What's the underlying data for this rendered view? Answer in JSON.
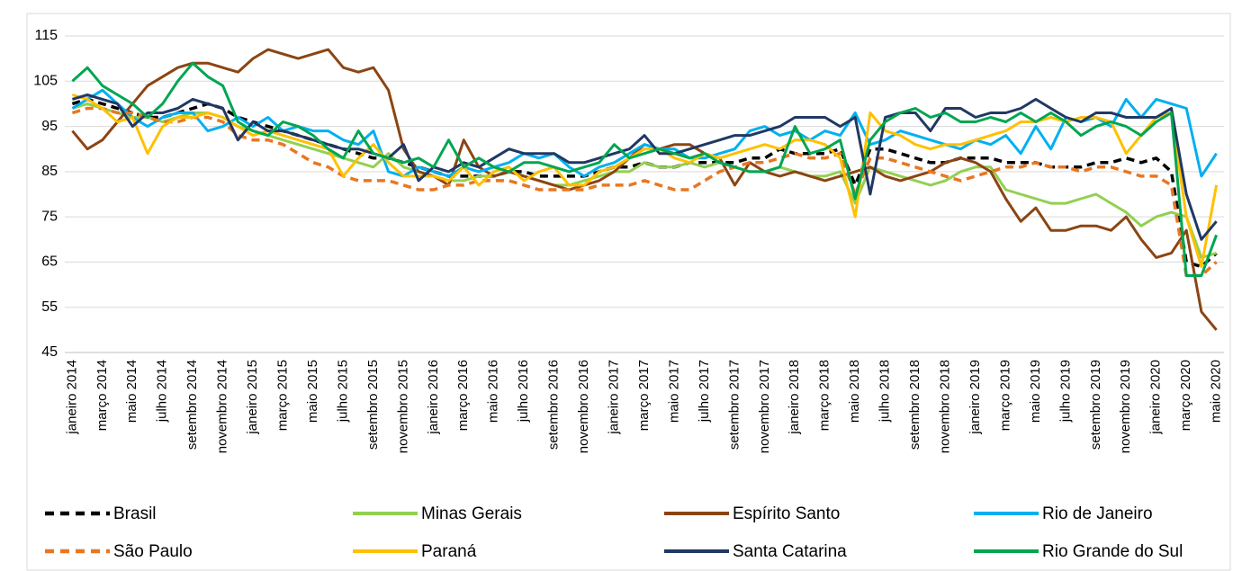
{
  "chart_data": {
    "type": "line",
    "categories": [
      "janeiro 2014",
      null,
      "março 2014",
      null,
      "maio 2014",
      null,
      "julho 2014",
      null,
      "setembro 2014",
      null,
      "novembro 2014",
      null,
      "janeiro 2015",
      null,
      "março 2015",
      null,
      "maio 2015",
      null,
      "julho 2015",
      null,
      "setembro 2015",
      null,
      "novembro 2015",
      null,
      "janeiro 2016",
      null,
      "março 2016",
      null,
      "maio 2016",
      null,
      "julho 2016",
      null,
      "setembro 2016",
      null,
      "novembro 2016",
      null,
      "janeiro 2017",
      null,
      "março 2017",
      null,
      "maio 2017",
      null,
      "julho 2017",
      null,
      "setembro 2017",
      null,
      "novembro 2017",
      null,
      "janeiro 2018",
      null,
      "março 2018",
      null,
      "maio 2018",
      null,
      "julho 2018",
      null,
      "setembro 2018",
      null,
      "novembro 2018",
      null,
      "janeiro 2019",
      null,
      "março 2019",
      null,
      "maio 2019",
      null,
      "julho 2019",
      null,
      "setembro 2019",
      null,
      "novembro 2019",
      null,
      "janeiro 2020",
      null,
      "março 2020",
      null,
      "maio 2020"
    ],
    "series": [
      {
        "name": "Brasil",
        "color": "#000000",
        "dash": true,
        "values": [
          100,
          101,
          100,
          99,
          98,
          97,
          97,
          98,
          99,
          100,
          99,
          97,
          96,
          95,
          94,
          93,
          92,
          91,
          90,
          89,
          88,
          88,
          87,
          86,
          85,
          84,
          84,
          84,
          84,
          85,
          85,
          84,
          84,
          84,
          84,
          85,
          86,
          86,
          87,
          86,
          86,
          87,
          87,
          87,
          87,
          88,
          88,
          90,
          89,
          89,
          89,
          90,
          82,
          90,
          90,
          89,
          88,
          87,
          87,
          88,
          88,
          88,
          87,
          87,
          87,
          86,
          86,
          86,
          87,
          87,
          88,
          87,
          88,
          85,
          65,
          64,
          67
        ]
      },
      {
        "name": "Minas Gerais",
        "color": "#92d050",
        "dash": false,
        "values": [
          99,
          100,
          99,
          98,
          97,
          97,
          96,
          97,
          98,
          98,
          97,
          95,
          94,
          93,
          92,
          91,
          90,
          89,
          88,
          87,
          86,
          89,
          86,
          85,
          84,
          83,
          83,
          84,
          84,
          85,
          84,
          83,
          82,
          82,
          83,
          84,
          85,
          85,
          87,
          86,
          86,
          87,
          86,
          87,
          86,
          85,
          85,
          86,
          85,
          84,
          84,
          85,
          78,
          86,
          85,
          84,
          83,
          82,
          83,
          85,
          86,
          86,
          81,
          80,
          79,
          78,
          78,
          79,
          80,
          78,
          76,
          73,
          75,
          76,
          75,
          66,
          67
        ]
      },
      {
        "name": "Espírito Santo",
        "color": "#8b4513",
        "dash": false,
        "values": [
          94,
          90,
          92,
          96,
          100,
          104,
          106,
          108,
          109,
          109,
          108,
          107,
          110,
          112,
          111,
          110,
          111,
          112,
          108,
          107,
          108,
          103,
          90,
          85,
          84,
          82,
          92,
          86,
          84,
          85,
          84,
          83,
          82,
          81,
          82,
          83,
          85,
          88,
          91,
          90,
          91,
          91,
          89,
          88,
          82,
          87,
          85,
          84,
          85,
          84,
          83,
          84,
          85,
          86,
          84,
          83,
          84,
          85,
          87,
          88,
          87,
          85,
          79,
          74,
          77,
          72,
          72,
          73,
          73,
          72,
          75,
          70,
          66,
          67,
          72,
          54,
          50
        ]
      },
      {
        "name": "Rio de Janeiro",
        "color": "#00b0f0",
        "dash": false,
        "values": [
          99,
          101,
          103,
          100,
          97,
          95,
          97,
          98,
          98,
          94,
          95,
          97,
          95,
          97,
          94,
          95,
          94,
          94,
          92,
          91,
          94,
          85,
          84,
          86,
          85,
          84,
          86,
          85,
          86,
          87,
          89,
          88,
          89,
          86,
          84,
          86,
          87,
          89,
          91,
          90,
          90,
          88,
          88,
          89,
          90,
          94,
          95,
          93,
          94,
          92,
          94,
          93,
          98,
          91,
          92,
          94,
          93,
          92,
          91,
          90,
          92,
          91,
          93,
          89,
          95,
          90,
          97,
          96,
          97,
          95,
          101,
          97,
          101,
          100,
          99,
          84,
          89
        ]
      },
      {
        "name": "São Paulo",
        "color": "#e87722",
        "dash": true,
        "values": [
          98,
          99,
          99,
          98,
          98,
          97,
          96,
          96,
          97,
          97,
          96,
          93,
          92,
          92,
          91,
          89,
          87,
          86,
          84,
          83,
          83,
          83,
          82,
          81,
          81,
          82,
          82,
          83,
          83,
          83,
          82,
          81,
          81,
          81,
          81,
          82,
          82,
          82,
          83,
          82,
          81,
          81,
          83,
          85,
          86,
          87,
          87,
          88,
          89,
          88,
          88,
          89,
          80,
          88,
          88,
          87,
          86,
          85,
          84,
          83,
          84,
          85,
          86,
          86,
          87,
          86,
          86,
          85,
          86,
          86,
          85,
          84,
          84,
          82,
          62,
          62,
          65
        ]
      },
      {
        "name": "Paraná",
        "color": "#ffc000",
        "dash": false,
        "values": [
          102,
          101,
          99,
          96,
          97,
          89,
          95,
          97,
          97,
          98,
          97,
          95,
          93,
          94,
          93,
          92,
          91,
          90,
          84,
          88,
          91,
          87,
          84,
          84,
          84,
          83,
          86,
          82,
          85,
          86,
          83,
          85,
          86,
          82,
          82,
          85,
          86,
          88,
          90,
          90,
          88,
          87,
          89,
          88,
          89,
          90,
          91,
          90,
          92,
          92,
          91,
          88,
          75,
          98,
          94,
          93,
          91,
          90,
          91,
          91,
          92,
          93,
          94,
          96,
          96,
          97,
          96,
          97,
          97,
          96,
          89,
          93,
          97,
          98,
          75,
          64,
          82
        ]
      },
      {
        "name": "Santa Catarina",
        "color": "#203864",
        "dash": false,
        "values": [
          101,
          102,
          101,
          100,
          95,
          98,
          98,
          99,
          101,
          100,
          99,
          92,
          96,
          94,
          94,
          93,
          92,
          91,
          90,
          90,
          89,
          88,
          91,
          83,
          86,
          85,
          87,
          86,
          88,
          90,
          89,
          89,
          89,
          87,
          87,
          88,
          89,
          90,
          93,
          89,
          89,
          90,
          91,
          92,
          93,
          93,
          94,
          95,
          97,
          97,
          97,
          95,
          97,
          80,
          97,
          98,
          98,
          94,
          99,
          99,
          97,
          98,
          98,
          99,
          101,
          99,
          97,
          96,
          98,
          98,
          97,
          97,
          97,
          99,
          80,
          70,
          74
        ]
      },
      {
        "name": "Rio Grande do Sul",
        "color": "#00a651",
        "dash": false,
        "values": [
          105,
          108,
          104,
          102,
          100,
          97,
          100,
          105,
          109,
          106,
          104,
          96,
          94,
          93,
          96,
          95,
          93,
          90,
          88,
          94,
          89,
          88,
          87,
          88,
          86,
          92,
          86,
          88,
          86,
          85,
          87,
          87,
          86,
          85,
          86,
          87,
          91,
          88,
          89,
          90,
          89,
          88,
          89,
          87,
          86,
          85,
          85,
          86,
          95,
          89,
          90,
          92,
          79,
          92,
          96,
          98,
          99,
          97,
          98,
          96,
          96,
          97,
          96,
          98,
          96,
          98,
          96,
          93,
          95,
          96,
          95,
          93,
          96,
          98,
          62,
          62,
          71
        ]
      }
    ],
    "ylim": [
      45,
      115
    ],
    "yticks": [
      45,
      55,
      65,
      75,
      85,
      95,
      105,
      115
    ],
    "grid": true
  }
}
